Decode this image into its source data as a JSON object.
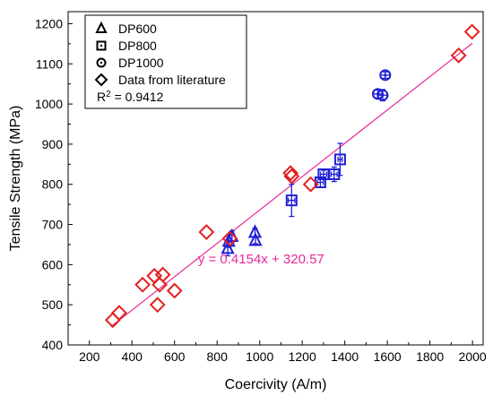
{
  "chart_data": {
    "type": "scatter",
    "xlabel": "Coercivity (A/m)",
    "ylabel": "Tensile Strength (MPa)",
    "xlim": [
      100,
      2050
    ],
    "ylim": [
      400,
      1230
    ],
    "xticks": [
      200,
      400,
      600,
      800,
      1000,
      1200,
      1400,
      1600,
      1800,
      2000
    ],
    "yticks": [
      400,
      500,
      600,
      700,
      800,
      900,
      1000,
      1100,
      1200
    ],
    "grid": false,
    "legend_position": "top-left",
    "colors": {
      "measured": "#1f1fd6",
      "literature": "#e3201f",
      "fit": "#e8289a"
    },
    "r_squared": {
      "prefix": "R",
      "sup": "2",
      "value": " = 0.9412"
    },
    "fit": {
      "slope": 0.4154,
      "intercept": 320.57,
      "x_range": [
        300,
        2000
      ],
      "label": "y = 0.4154x + 320.57"
    },
    "series": [
      {
        "name": "DP600",
        "marker": "triangle",
        "color": "#1f1fd6",
        "points": [
          {
            "x": 850,
            "y": 640,
            "yerr": 18
          },
          {
            "x": 855,
            "y": 658,
            "yerr": 15
          },
          {
            "x": 870,
            "y": 670,
            "yerr": 14
          },
          {
            "x": 978,
            "y": 680,
            "yerr": 10
          },
          {
            "x": 980,
            "y": 660,
            "yerr": 8
          }
        ]
      },
      {
        "name": "DP800",
        "marker": "square",
        "color": "#1f1fd6",
        "points": [
          {
            "x": 1150,
            "y": 760,
            "yerr": 40,
            "xerr": 15
          },
          {
            "x": 1285,
            "y": 805,
            "yerr": 12,
            "xerr": 14
          },
          {
            "x": 1300,
            "y": 825,
            "yerr": 10,
            "xerr": 14
          },
          {
            "x": 1350,
            "y": 825,
            "yerr": 18,
            "xerr": 14
          },
          {
            "x": 1378,
            "y": 862,
            "yerr": 40,
            "xerr": 10
          }
        ]
      },
      {
        "name": "DP1000",
        "marker": "circle",
        "color": "#1f1fd6",
        "points": [
          {
            "x": 1555,
            "y": 1025,
            "yerr": 10,
            "xerr": 20
          },
          {
            "x": 1578,
            "y": 1022,
            "yerr": 14,
            "xerr": 20
          },
          {
            "x": 1590,
            "y": 1072,
            "yerr": 8,
            "xerr": 22
          }
        ]
      },
      {
        "name": "Data from literature",
        "marker": "diamond",
        "color": "#e3201f",
        "points": [
          {
            "x": 310,
            "y": 462
          },
          {
            "x": 340,
            "y": 480
          },
          {
            "x": 450,
            "y": 550
          },
          {
            "x": 505,
            "y": 572
          },
          {
            "x": 520,
            "y": 500
          },
          {
            "x": 530,
            "y": 550
          },
          {
            "x": 545,
            "y": 575
          },
          {
            "x": 600,
            "y": 535
          },
          {
            "x": 750,
            "y": 681
          },
          {
            "x": 860,
            "y": 665
          },
          {
            "x": 1145,
            "y": 828
          },
          {
            "x": 1150,
            "y": 820
          },
          {
            "x": 1240,
            "y": 800
          },
          {
            "x": 1935,
            "y": 1121
          },
          {
            "x": 1998,
            "y": 1180
          }
        ]
      }
    ]
  }
}
